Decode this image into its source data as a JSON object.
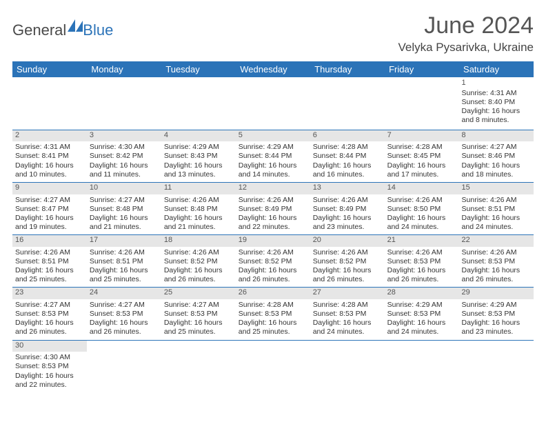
{
  "logo": {
    "part1": "General",
    "part2": "Blue"
  },
  "title": "June 2024",
  "location": "Velyka Pysarivka, Ukraine",
  "colors": {
    "header_bg": "#2b73b8",
    "header_text": "#ffffff",
    "daynum_bg": "#e6e6e6",
    "grid_line": "#2b73b8",
    "body_text": "#333333",
    "title_text": "#555555"
  },
  "weekdays": [
    "Sunday",
    "Monday",
    "Tuesday",
    "Wednesday",
    "Thursday",
    "Friday",
    "Saturday"
  ],
  "weeks": [
    [
      null,
      null,
      null,
      null,
      null,
      null,
      {
        "n": "1",
        "sunrise": "Sunrise: 4:31 AM",
        "sunset": "Sunset: 8:40 PM",
        "daylight": "Daylight: 16 hours and 8 minutes."
      }
    ],
    [
      {
        "n": "2",
        "sunrise": "Sunrise: 4:31 AM",
        "sunset": "Sunset: 8:41 PM",
        "daylight": "Daylight: 16 hours and 10 minutes."
      },
      {
        "n": "3",
        "sunrise": "Sunrise: 4:30 AM",
        "sunset": "Sunset: 8:42 PM",
        "daylight": "Daylight: 16 hours and 11 minutes."
      },
      {
        "n": "4",
        "sunrise": "Sunrise: 4:29 AM",
        "sunset": "Sunset: 8:43 PM",
        "daylight": "Daylight: 16 hours and 13 minutes."
      },
      {
        "n": "5",
        "sunrise": "Sunrise: 4:29 AM",
        "sunset": "Sunset: 8:44 PM",
        "daylight": "Daylight: 16 hours and 14 minutes."
      },
      {
        "n": "6",
        "sunrise": "Sunrise: 4:28 AM",
        "sunset": "Sunset: 8:44 PM",
        "daylight": "Daylight: 16 hours and 16 minutes."
      },
      {
        "n": "7",
        "sunrise": "Sunrise: 4:28 AM",
        "sunset": "Sunset: 8:45 PM",
        "daylight": "Daylight: 16 hours and 17 minutes."
      },
      {
        "n": "8",
        "sunrise": "Sunrise: 4:27 AM",
        "sunset": "Sunset: 8:46 PM",
        "daylight": "Daylight: 16 hours and 18 minutes."
      }
    ],
    [
      {
        "n": "9",
        "sunrise": "Sunrise: 4:27 AM",
        "sunset": "Sunset: 8:47 PM",
        "daylight": "Daylight: 16 hours and 19 minutes."
      },
      {
        "n": "10",
        "sunrise": "Sunrise: 4:27 AM",
        "sunset": "Sunset: 8:48 PM",
        "daylight": "Daylight: 16 hours and 21 minutes."
      },
      {
        "n": "11",
        "sunrise": "Sunrise: 4:26 AM",
        "sunset": "Sunset: 8:48 PM",
        "daylight": "Daylight: 16 hours and 21 minutes."
      },
      {
        "n": "12",
        "sunrise": "Sunrise: 4:26 AM",
        "sunset": "Sunset: 8:49 PM",
        "daylight": "Daylight: 16 hours and 22 minutes."
      },
      {
        "n": "13",
        "sunrise": "Sunrise: 4:26 AM",
        "sunset": "Sunset: 8:49 PM",
        "daylight": "Daylight: 16 hours and 23 minutes."
      },
      {
        "n": "14",
        "sunrise": "Sunrise: 4:26 AM",
        "sunset": "Sunset: 8:50 PM",
        "daylight": "Daylight: 16 hours and 24 minutes."
      },
      {
        "n": "15",
        "sunrise": "Sunrise: 4:26 AM",
        "sunset": "Sunset: 8:51 PM",
        "daylight": "Daylight: 16 hours and 24 minutes."
      }
    ],
    [
      {
        "n": "16",
        "sunrise": "Sunrise: 4:26 AM",
        "sunset": "Sunset: 8:51 PM",
        "daylight": "Daylight: 16 hours and 25 minutes."
      },
      {
        "n": "17",
        "sunrise": "Sunrise: 4:26 AM",
        "sunset": "Sunset: 8:51 PM",
        "daylight": "Daylight: 16 hours and 25 minutes."
      },
      {
        "n": "18",
        "sunrise": "Sunrise: 4:26 AM",
        "sunset": "Sunset: 8:52 PM",
        "daylight": "Daylight: 16 hours and 26 minutes."
      },
      {
        "n": "19",
        "sunrise": "Sunrise: 4:26 AM",
        "sunset": "Sunset: 8:52 PM",
        "daylight": "Daylight: 16 hours and 26 minutes."
      },
      {
        "n": "20",
        "sunrise": "Sunrise: 4:26 AM",
        "sunset": "Sunset: 8:52 PM",
        "daylight": "Daylight: 16 hours and 26 minutes."
      },
      {
        "n": "21",
        "sunrise": "Sunrise: 4:26 AM",
        "sunset": "Sunset: 8:53 PM",
        "daylight": "Daylight: 16 hours and 26 minutes."
      },
      {
        "n": "22",
        "sunrise": "Sunrise: 4:26 AM",
        "sunset": "Sunset: 8:53 PM",
        "daylight": "Daylight: 16 hours and 26 minutes."
      }
    ],
    [
      {
        "n": "23",
        "sunrise": "Sunrise: 4:27 AM",
        "sunset": "Sunset: 8:53 PM",
        "daylight": "Daylight: 16 hours and 26 minutes."
      },
      {
        "n": "24",
        "sunrise": "Sunrise: 4:27 AM",
        "sunset": "Sunset: 8:53 PM",
        "daylight": "Daylight: 16 hours and 26 minutes."
      },
      {
        "n": "25",
        "sunrise": "Sunrise: 4:27 AM",
        "sunset": "Sunset: 8:53 PM",
        "daylight": "Daylight: 16 hours and 25 minutes."
      },
      {
        "n": "26",
        "sunrise": "Sunrise: 4:28 AM",
        "sunset": "Sunset: 8:53 PM",
        "daylight": "Daylight: 16 hours and 25 minutes."
      },
      {
        "n": "27",
        "sunrise": "Sunrise: 4:28 AM",
        "sunset": "Sunset: 8:53 PM",
        "daylight": "Daylight: 16 hours and 24 minutes."
      },
      {
        "n": "28",
        "sunrise": "Sunrise: 4:29 AM",
        "sunset": "Sunset: 8:53 PM",
        "daylight": "Daylight: 16 hours and 24 minutes."
      },
      {
        "n": "29",
        "sunrise": "Sunrise: 4:29 AM",
        "sunset": "Sunset: 8:53 PM",
        "daylight": "Daylight: 16 hours and 23 minutes."
      }
    ],
    [
      {
        "n": "30",
        "sunrise": "Sunrise: 4:30 AM",
        "sunset": "Sunset: 8:53 PM",
        "daylight": "Daylight: 16 hours and 22 minutes."
      },
      null,
      null,
      null,
      null,
      null,
      null
    ]
  ]
}
